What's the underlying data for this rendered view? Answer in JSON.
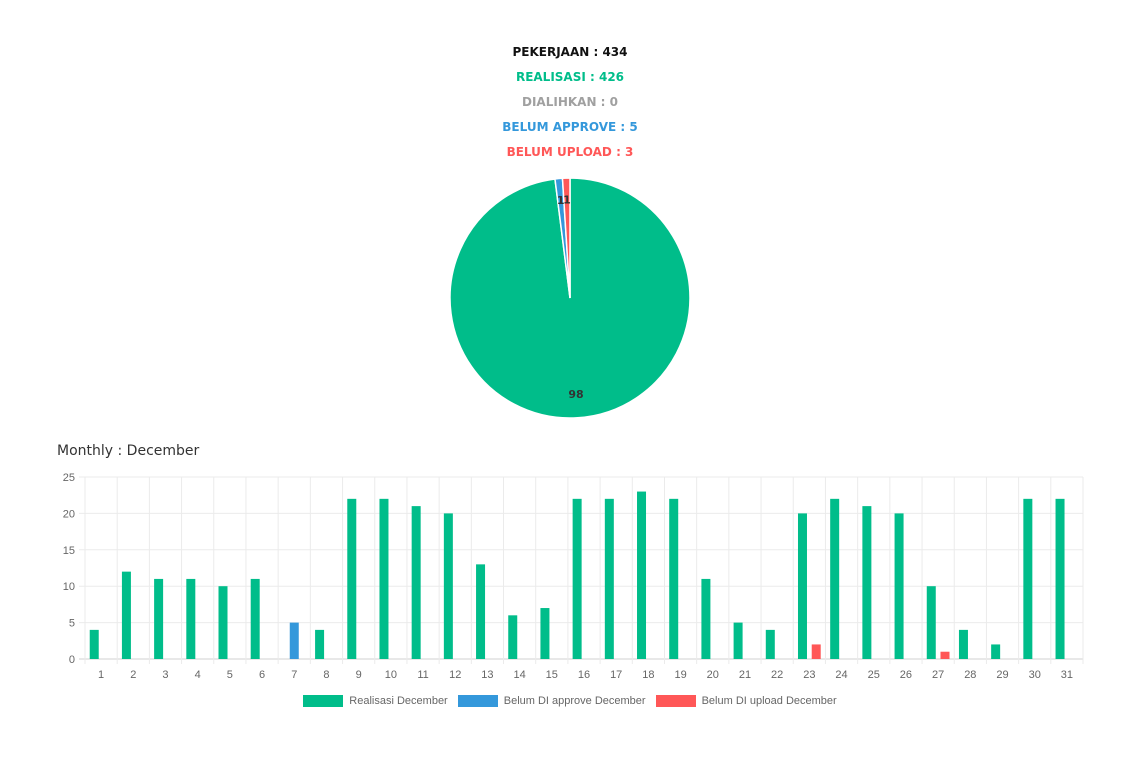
{
  "stats": {
    "pekerjaan": "PEKERJAAN : 434",
    "realisasi": "REALISASI : 426",
    "dialihkan": "DIALIHKAN : 0",
    "belum_approve": "BELUM APPROVE : 5",
    "belum_upload": "BELUM UPLOAD : 3"
  },
  "colors": {
    "pekerjaan": "#111111",
    "realisasi": "#00bd8a",
    "dialihkan": "#a0a0a0",
    "approve": "#3498db",
    "upload": "#ff5757"
  },
  "monthly_title": "Monthly : December",
  "chart_data": [
    {
      "type": "pie",
      "values": [
        98,
        1,
        1
      ],
      "labels": [
        "98",
        "1",
        "1"
      ],
      "colors": [
        "#00bd8a",
        "#3498db",
        "#ff5757"
      ]
    },
    {
      "type": "bar",
      "categories": [
        "1",
        "2",
        "3",
        "4",
        "5",
        "6",
        "7",
        "8",
        "9",
        "10",
        "11",
        "12",
        "13",
        "14",
        "15",
        "16",
        "17",
        "18",
        "19",
        "20",
        "21",
        "22",
        "23",
        "24",
        "25",
        "26",
        "27",
        "28",
        "29",
        "30",
        "31"
      ],
      "series": [
        {
          "name": "Realisasi December",
          "color": "#00bd8a",
          "values": [
            4,
            12,
            11,
            11,
            10,
            11,
            0,
            4,
            22,
            22,
            21,
            20,
            13,
            6,
            7,
            22,
            22,
            23,
            22,
            11,
            5,
            4,
            20,
            22,
            21,
            20,
            10,
            4,
            2,
            22,
            22
          ]
        },
        {
          "name": "Belum DI approve December",
          "color": "#3498db",
          "values": [
            0,
            0,
            0,
            0,
            0,
            0,
            5,
            0,
            0,
            0,
            0,
            0,
            0,
            0,
            0,
            0,
            0,
            0,
            0,
            0,
            0,
            0,
            0,
            0,
            0,
            0,
            0,
            0,
            0,
            0,
            0
          ]
        },
        {
          "name": "Belum DI upload December",
          "color": "#ff5757",
          "values": [
            0,
            0,
            0,
            0,
            0,
            0,
            0,
            0,
            0,
            0,
            0,
            0,
            0,
            0,
            0,
            0,
            0,
            0,
            0,
            0,
            0,
            0,
            2,
            0,
            0,
            0,
            1,
            0,
            0,
            0,
            0
          ]
        }
      ],
      "yticks": [
        0,
        5,
        10,
        15,
        20,
        25
      ],
      "ylim": [
        0,
        25
      ],
      "grid": true,
      "legend": "bottom"
    }
  ]
}
